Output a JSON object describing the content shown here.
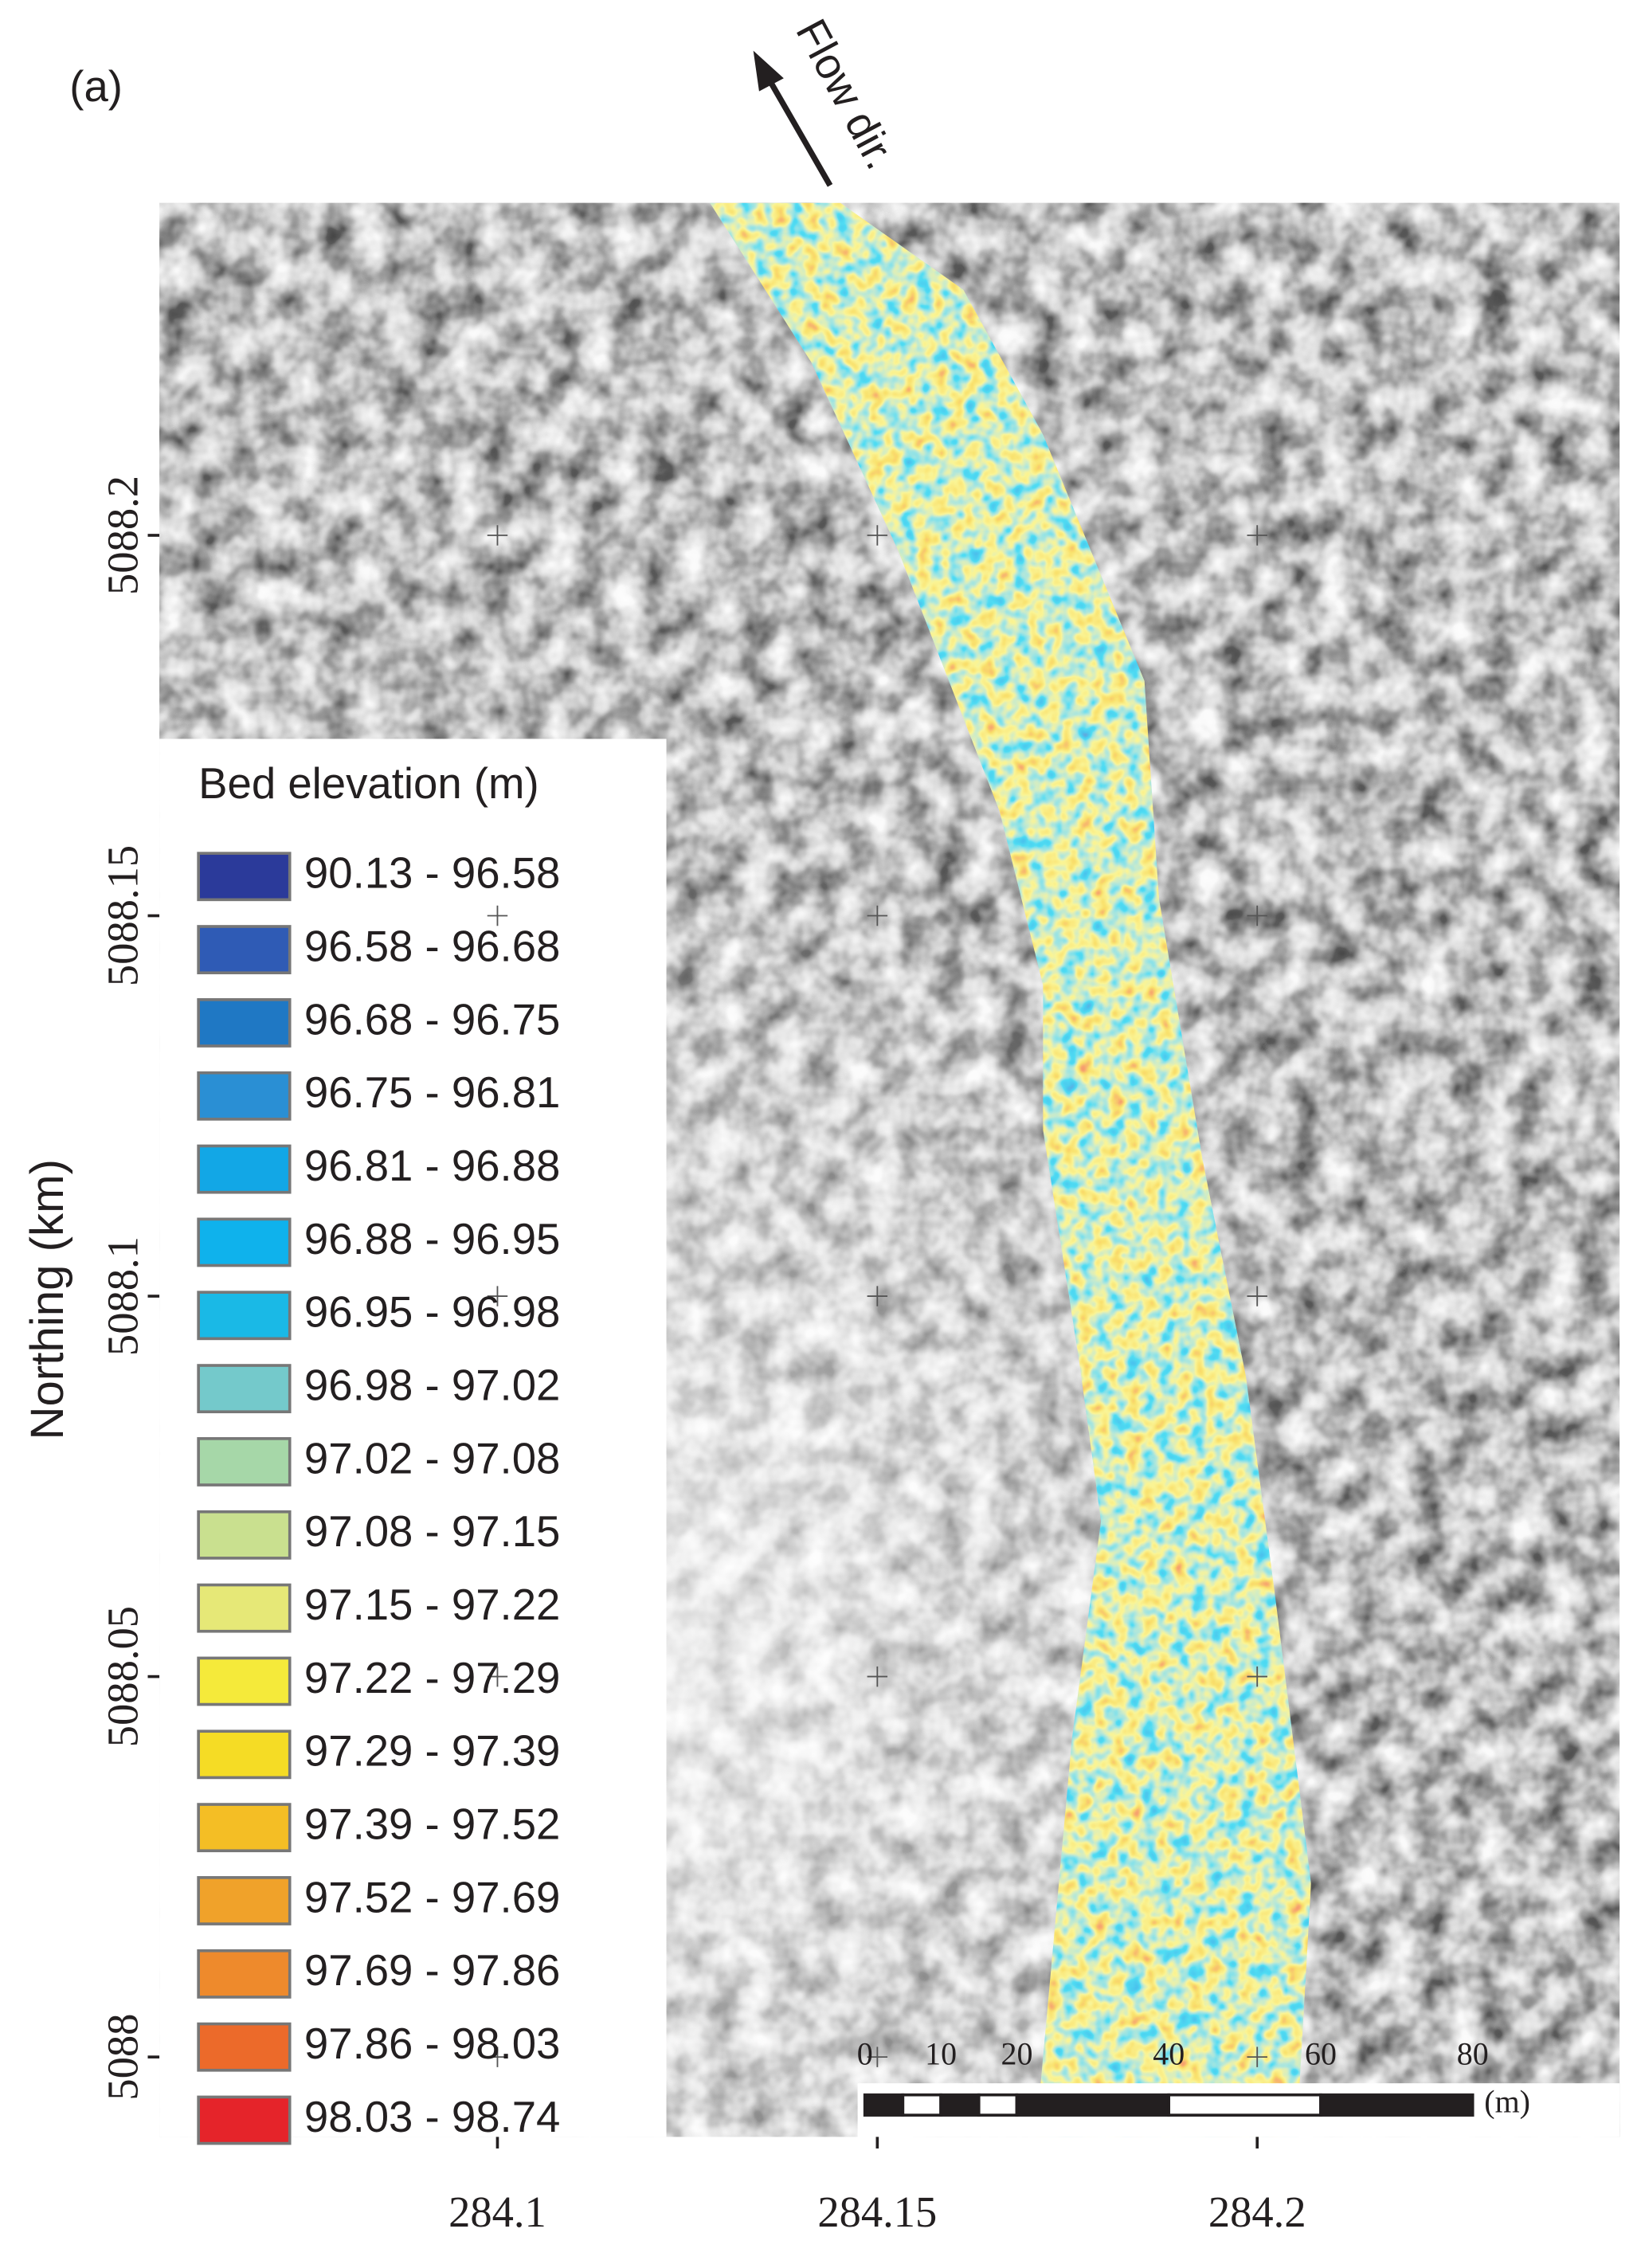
{
  "panel_label": "(a)",
  "flow_label": "Flow dir.",
  "axes": {
    "y_label": "Northing (km)",
    "xlim": [
      284.0555,
      284.2477
    ],
    "ylim": [
      5087.9895,
      5088.2437
    ],
    "xticks": [
      284.1,
      284.15,
      284.2
    ],
    "yticks": [
      5088.2,
      5088.15,
      5088.1,
      5088.05,
      5088
    ]
  },
  "legend": {
    "title": "Bed elevation (m)",
    "items": [
      {
        "label": "90.13 - 96.58",
        "color": "#2b3a9a"
      },
      {
        "label": "96.58 - 96.68",
        "color": "#2f5bb5"
      },
      {
        "label": "96.68 - 96.75",
        "color": "#1f78c4"
      },
      {
        "label": "96.75 - 96.81",
        "color": "#2a8fd4"
      },
      {
        "label": "96.81 - 96.88",
        "color": "#12a7e6"
      },
      {
        "label": "96.88 - 96.95",
        "color": "#0fb2ec"
      },
      {
        "label": "96.95 - 96.98",
        "color": "#1ab9e6"
      },
      {
        "label": "96.98 - 97.02",
        "color": "#74c9cb"
      },
      {
        "label": "97.02 - 97.08",
        "color": "#a6d7a8"
      },
      {
        "label": "97.08 - 97.15",
        "color": "#c9e08f"
      },
      {
        "label": "97.15 - 97.22",
        "color": "#e6e877"
      },
      {
        "label": "97.22 - 97.29",
        "color": "#f5ea3a"
      },
      {
        "label": "97.29 - 97.39",
        "color": "#f5dc25"
      },
      {
        "label": "97.39 - 97.52",
        "color": "#f4be25"
      },
      {
        "label": "97.52 - 97.69",
        "color": "#f0a22a"
      },
      {
        "label": "97.69 - 97.86",
        "color": "#ee8a2c"
      },
      {
        "label": "97.86 - 98.03",
        "color": "#ec6a2a"
      },
      {
        "label": "98.03 - 98.74",
        "color": "#e5242a"
      }
    ]
  },
  "scale_bar": {
    "ticks": [
      0,
      10,
      20,
      40,
      60,
      80
    ],
    "unit": "(m)"
  }
}
